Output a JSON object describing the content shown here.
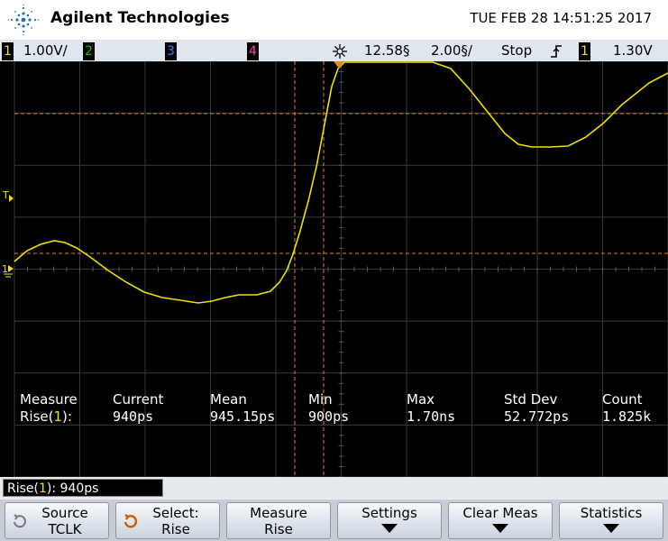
{
  "header": {
    "brand": "Agilent Technologies",
    "datetime": "TUE FEB 28 14:51:25 2017"
  },
  "status": {
    "ch1_num": "1",
    "ch1_scale": "1.00V/",
    "ch2_num": "2",
    "ch3_num": "3",
    "ch4_num": "4",
    "time_delay": "12.58§",
    "time_scale": "2.00§/",
    "run_state": "Stop",
    "trigger_icon": "rising-edge-trigger-icon",
    "trig_ch": "1",
    "trig_level": "1.30V"
  },
  "measure": {
    "headers": [
      "Measure",
      "Current",
      "Mean",
      "Min",
      "Max",
      "Std Dev",
      "Count"
    ],
    "row_label_prefix": "Rise(",
    "row_label_ch": "1",
    "row_label_suffix": "):",
    "values": [
      "940ps",
      "945.15ps",
      "900ps",
      "1.70ns",
      "52.772ps",
      "1.825k"
    ]
  },
  "readout": {
    "prefix": "Rise(",
    "ch": "1",
    "suffix": "): 940ps"
  },
  "softkeys": {
    "source_l1": "Source",
    "source_l2": "TCLK",
    "select_l1": "Select:",
    "select_l2": "Rise",
    "measure_l1": "Measure",
    "measure_l2": "Rise",
    "settings_l1": "Settings",
    "clear_l1": "Clear Meas",
    "statistics_l1": "Statistics"
  },
  "markers": {
    "trigger_marker": "T",
    "ground_marker": "1"
  },
  "colors": {
    "trace": "#f0e000",
    "cursor": "#e08a20",
    "grid": "#3a3a3a"
  }
}
